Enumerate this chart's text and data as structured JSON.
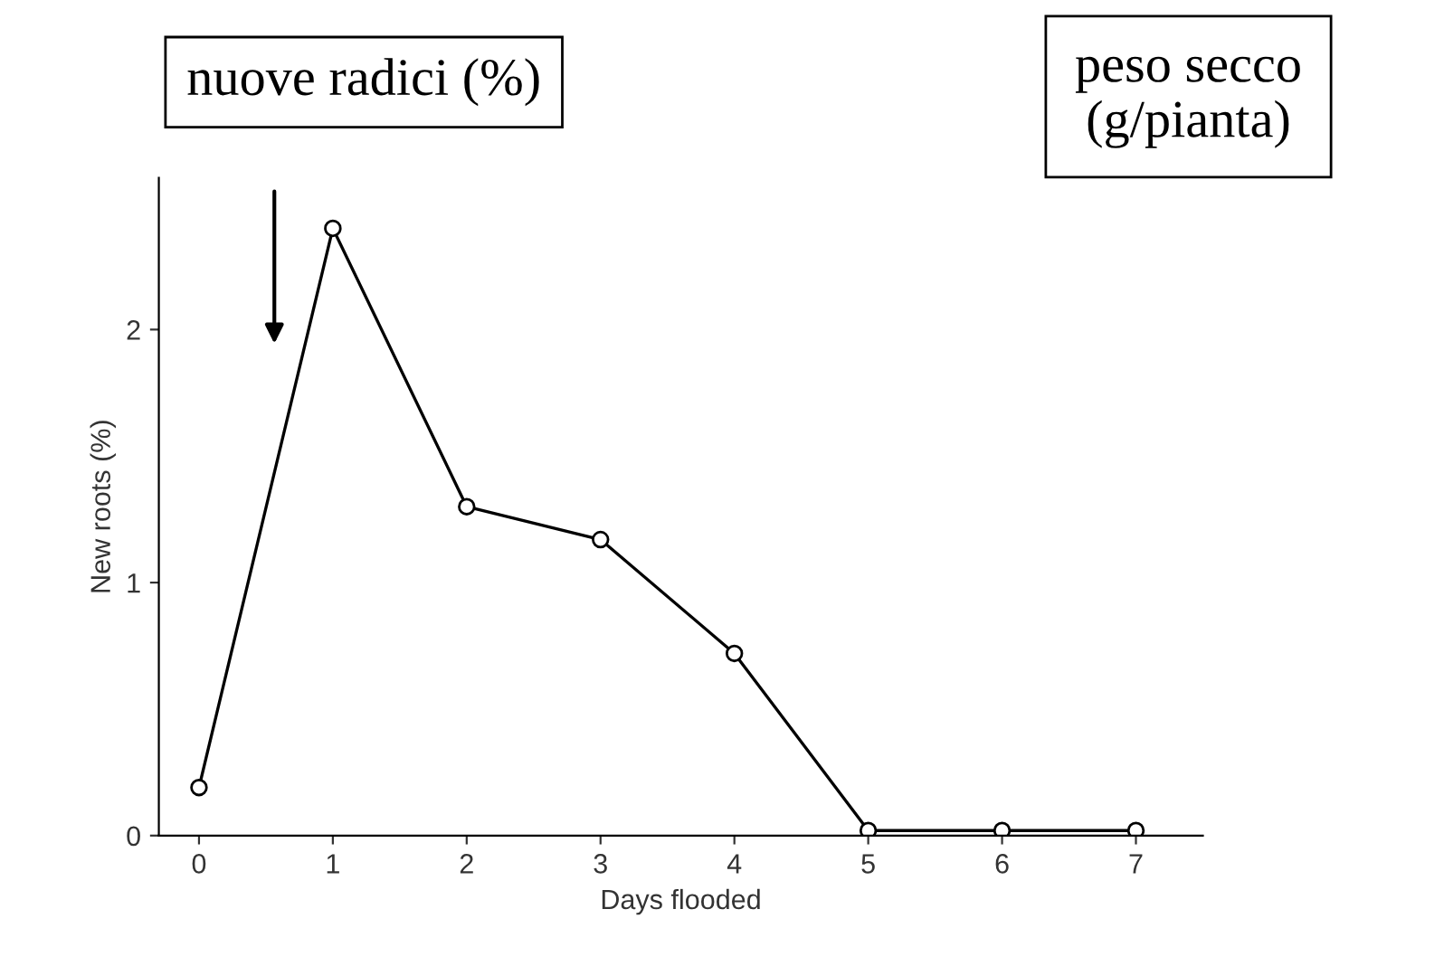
{
  "chart_data": {
    "type": "line",
    "xlabel": "Days flooded",
    "ylabel": "New roots (%)",
    "x": [
      0,
      1,
      2,
      3,
      4,
      5,
      6,
      7
    ],
    "series": [
      {
        "color": "#000000",
        "values": [
          0.19,
          2.4,
          1.3,
          1.17,
          0.72,
          0.02,
          0.02,
          0.02
        ]
      }
    ],
    "xlim": [
      -0.3,
      7.5
    ],
    "xticks": [
      0,
      1,
      2,
      3,
      4,
      5,
      6,
      7
    ],
    "ylim": [
      0,
      2.6
    ],
    "yticks": [
      0,
      1,
      2
    ],
    "marker": "circle",
    "line_style": "solid",
    "grid": false,
    "legend": false,
    "annotations": [
      "nuove radici (%)",
      "peso secco\n(g/pianta)"
    ]
  }
}
